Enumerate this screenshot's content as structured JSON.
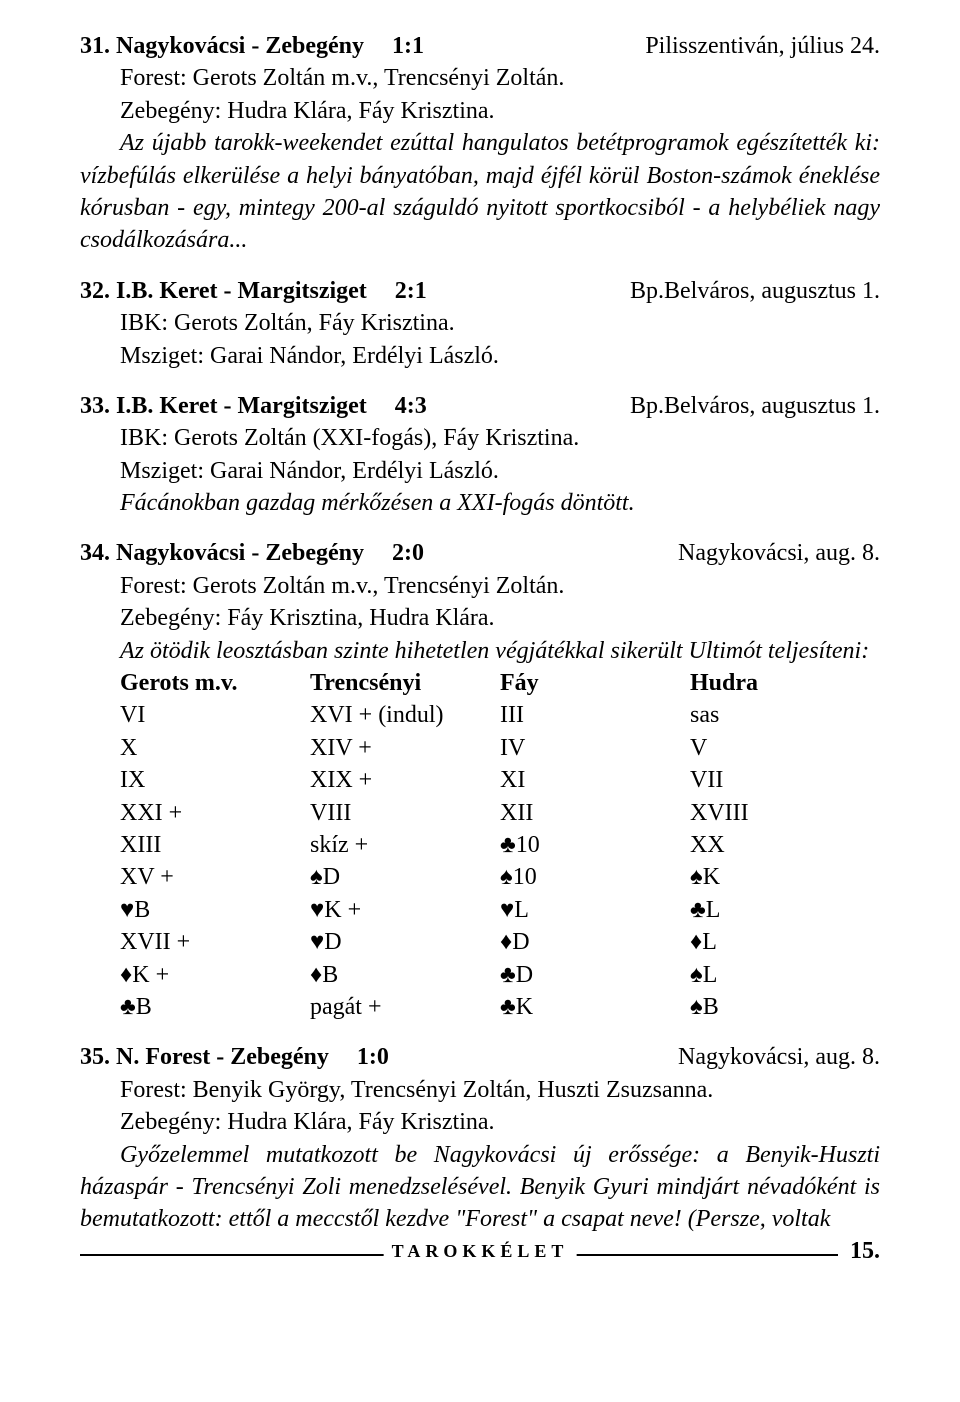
{
  "entries": [
    {
      "num": "31.",
      "title": "Nagykovácsi - Zebegény",
      "score": "1:1",
      "loc": "Pilisszentiván, július 24.",
      "lines": [
        {
          "text": "Forest: Gerots Zoltán m.v., Trencsényi Zoltán.",
          "indent": true
        },
        {
          "text": "Zebegény: Hudra Klára, Fáy Krisztina.",
          "indent": true
        }
      ],
      "para": "Az újabb tarokk-weekendet ezúttal hangulatos betétprogramok egészítették ki: vízbefúlás elkerülése a helyi bányatóban, majd éjfél körül Boston-számok éneklése kórusban - egy, mintegy 200-al száguldó nyitott sportkocsiból - a helybéliek nagy csodálkozására..."
    },
    {
      "num": "32.",
      "title": "I.B. Keret - Margitsziget",
      "score": "2:1",
      "loc": "Bp.Belváros, augusztus 1.",
      "lines": [
        {
          "text": "IBK: Gerots Zoltán, Fáy Krisztina.",
          "indent": true
        },
        {
          "text": "Msziget: Garai Nándor, Erdélyi László.",
          "indent": true
        }
      ]
    },
    {
      "num": "33.",
      "title": "I.B. Keret - Margitsziget",
      "score": "4:3",
      "loc": "Bp.Belváros, augusztus 1.",
      "lines": [
        {
          "text": "IBK: Gerots Zoltán (XXI-fogás), Fáy Krisztina.",
          "indent": true
        },
        {
          "text": "Msziget: Garai Nándor, Erdélyi László.",
          "indent": true
        },
        {
          "text": "Fácánokban gazdag mérkőzésen a XXI-fogás döntött.",
          "indent": true,
          "italic": true
        }
      ]
    },
    {
      "num": "34.",
      "title": "Nagykovácsi - Zebegény",
      "score": "2:0",
      "loc": "Nagykovácsi, aug. 8.",
      "lines": [
        {
          "text": "Forest: Gerots Zoltán m.v., Trencsényi Zoltán.",
          "indent": true
        },
        {
          "text": "Zebegény: Fáy Krisztina, Hudra Klára.",
          "indent": true
        }
      ],
      "para_noindent": "Az ötödik leosztásban szinte hihetetlen végjátékkal sikerült Ultimót teljesíteni:",
      "hand": {
        "header": [
          "Gerots m.v.",
          "Trencsényi",
          "Fáy",
          "Hudra"
        ],
        "rows": [
          [
            "VI",
            "XVI + (indul)",
            "III",
            "sas"
          ],
          [
            "X",
            "XIV +",
            "IV",
            "V"
          ],
          [
            "IX",
            "XIX +",
            "XI",
            "VII"
          ],
          [
            "XXI +",
            "VIII",
            "XII",
            "XVIII"
          ],
          [
            "XIII",
            "skíz +",
            "♣10",
            "XX"
          ],
          [
            "XV +",
            "♠D",
            "♠10",
            "♠K"
          ],
          [
            "♥B",
            "♥K +",
            "♥L",
            "♣L"
          ],
          [
            "XVII +",
            "♥D",
            "♦D",
            "♦L"
          ],
          [
            "♦K +",
            "♦B",
            "♣D",
            "♠L"
          ],
          [
            "♣B",
            "pagát +",
            "♣K",
            "♠B"
          ]
        ]
      }
    },
    {
      "num": "35.",
      "title": "N. Forest - Zebegény",
      "score": "1:0",
      "loc": "Nagykovácsi, aug. 8.",
      "lines": [
        {
          "text": "Forest: Benyik György, Trencsényi Zoltán, Huszti Zsuzsanna.",
          "indent": true
        },
        {
          "text": "Zebegény: Hudra Klára, Fáy Krisztina.",
          "indent": true
        }
      ],
      "para": "Győzelemmel mutatkozott be Nagykovácsi új erőssége: a Benyik-Huszti házaspár - Trencsényi Zoli menedzselésével. Benyik Gyuri mindjárt névadóként is bemutatkozott: ettől a meccstől kezdve \"Forest\" a csapat neve! (Persze, voltak"
    }
  ],
  "footer": {
    "title": "TAROKKÉLET",
    "page": "15."
  }
}
